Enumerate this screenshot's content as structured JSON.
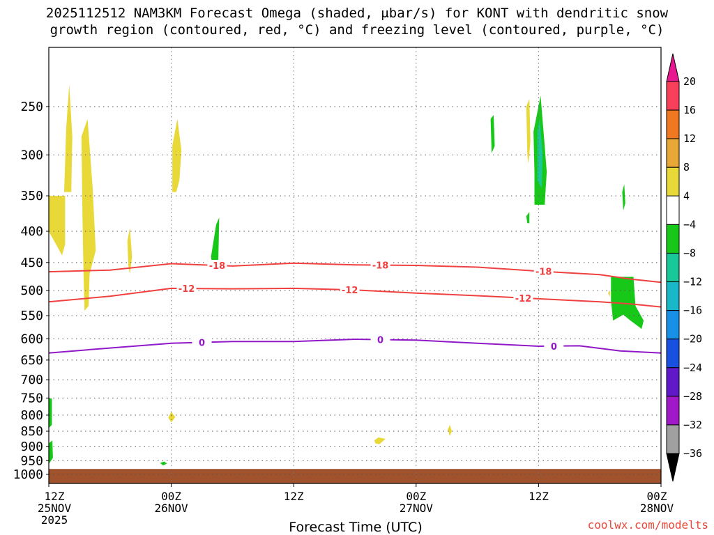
{
  "title_line1": "2025112512 NAM3KM Forecast Omega (shaded, μbar/s) for KONT with dendritic snow",
  "title_line2": "growth region (contoured, red, °C) and freezing level (contoured, purple, °C)",
  "credit": "coolwx.com/modelts",
  "chart_data": {
    "type": "time-height-contour",
    "title": "2025112512 NAM3KM Forecast Omega (shaded, μbar/s) for KONT with dendritic snow growth region (contoured, red, °C) and freezing level (contoured, purple, °C)",
    "xlabel": "Forecast Time (UTC)",
    "ylabel": "",
    "x_ticks": [
      {
        "hour": 0,
        "label1": "12Z",
        "label2": "25NOV",
        "label3": "2025"
      },
      {
        "hour": 12,
        "label1": "00Z",
        "label2": "26NOV",
        "label3": ""
      },
      {
        "hour": 24,
        "label1": "12Z",
        "label2": "",
        "label3": ""
      },
      {
        "hour": 36,
        "label1": "00Z",
        "label2": "27NOV",
        "label3": ""
      },
      {
        "hour": 48,
        "label1": "12Z",
        "label2": "",
        "label3": ""
      },
      {
        "hour": 60,
        "label1": "00Z",
        "label2": "28NOV",
        "label3": ""
      }
    ],
    "xlim_hours": [
      0,
      60
    ],
    "y_ticks": [
      250,
      300,
      350,
      400,
      450,
      500,
      550,
      600,
      650,
      700,
      750,
      800,
      850,
      900,
      950,
      1000
    ],
    "ylim_hpa": [
      200,
      1035
    ],
    "y_scale": "log-pressure",
    "grid": true,
    "colorbar": {
      "labels": [
        "20",
        "16",
        "12",
        "8",
        "4",
        "−4",
        "−8",
        "−12",
        "−16",
        "−20",
        "−24",
        "−28",
        "−32",
        "−36"
      ],
      "colors": [
        "#f8405a",
        "#f07820",
        "#e8a838",
        "#e8d838",
        "#ffffff",
        "#18c818",
        "#18c898",
        "#18b8c8",
        "#1890e8",
        "#1850e0",
        "#6018c8",
        "#a018c8",
        "#a0a0a0"
      ],
      "top_triangle_color": "#e81890",
      "bottom_triangle_color": "#000000"
    },
    "contours": [
      {
        "label": "-18",
        "color": "#f04040",
        "points": [
          [
            0,
            466
          ],
          [
            6,
            463
          ],
          [
            12,
            452
          ],
          [
            18,
            456
          ],
          [
            24,
            451
          ],
          [
            30,
            454
          ],
          [
            36,
            455
          ],
          [
            42,
            458
          ],
          [
            48,
            465
          ],
          [
            54,
            471
          ],
          [
            57,
            479
          ],
          [
            60,
            485
          ]
        ],
        "label_hours": [
          16.5,
          32.5,
          48.5
        ]
      },
      {
        "label": "-12",
        "color": "#f04040",
        "points": [
          [
            0,
            522
          ],
          [
            6,
            511
          ],
          [
            12,
            496
          ],
          [
            18,
            497
          ],
          [
            24,
            496
          ],
          [
            30,
            499
          ],
          [
            36,
            505
          ],
          [
            42,
            510
          ],
          [
            48,
            516
          ],
          [
            54,
            522
          ],
          [
            57,
            526
          ],
          [
            60,
            532
          ]
        ],
        "label_hours": [
          13.5,
          29.5,
          46.5
        ]
      },
      {
        "label": "0",
        "color": "#9018c8",
        "points": [
          [
            0,
            633
          ],
          [
            4,
            625
          ],
          [
            12,
            610
          ],
          [
            18,
            606
          ],
          [
            24,
            606
          ],
          [
            30,
            601
          ],
          [
            36,
            603
          ],
          [
            42,
            610
          ],
          [
            48,
            617
          ],
          [
            52,
            616
          ],
          [
            56,
            628
          ],
          [
            60,
            633
          ]
        ],
        "label_hours": [
          15,
          32.5,
          49.5
        ]
      }
    ],
    "omega_regions": [
      {
        "value": 4,
        "color": "#e8d838",
        "points": [
          [
            0,
            350
          ],
          [
            1.6,
            350
          ],
          [
            1.6,
            420
          ],
          [
            1.3,
            438
          ],
          [
            0,
            400
          ]
        ]
      },
      {
        "value": 4,
        "color": "#e8d838",
        "points": [
          [
            1.5,
            345
          ],
          [
            1.7,
            272
          ],
          [
            2.0,
            230
          ],
          [
            2.3,
            280
          ],
          [
            2.2,
            345
          ]
        ]
      },
      {
        "value": 4,
        "color": "#e8d838",
        "points": [
          [
            3.2,
            280
          ],
          [
            3.8,
            262
          ],
          [
            4.3,
            340
          ],
          [
            4.6,
            430
          ],
          [
            4.0,
            470
          ],
          [
            3.9,
            530
          ],
          [
            3.5,
            540
          ],
          [
            3.4,
            470
          ],
          [
            3.3,
            380
          ]
        ]
      },
      {
        "value": 4,
        "color": "#e8d838",
        "points": [
          [
            7.7,
            415
          ],
          [
            7.95,
            395
          ],
          [
            8.15,
            440
          ],
          [
            7.95,
            470
          ],
          [
            7.8,
            455
          ]
        ]
      },
      {
        "value": 4,
        "color": "#e8d838",
        "points": [
          [
            12.1,
            290
          ],
          [
            12.6,
            262
          ],
          [
            13.0,
            295
          ],
          [
            12.8,
            330
          ],
          [
            12.5,
            345
          ],
          [
            12.1,
            345
          ]
        ]
      },
      {
        "value": -4,
        "color": "#18c818",
        "points": [
          [
            15.9,
            440
          ],
          [
            16.4,
            390
          ],
          [
            16.7,
            380
          ],
          [
            16.6,
            455
          ],
          [
            16.0,
            455
          ]
        ]
      },
      {
        "value": -4,
        "color": "#18c818",
        "points": [
          [
            43.3,
            262
          ],
          [
            43.6,
            258
          ],
          [
            43.7,
            290
          ],
          [
            43.4,
            298
          ]
        ]
      },
      {
        "value": 4,
        "color": "#e8d838",
        "points": [
          [
            46.8,
            250
          ],
          [
            47.1,
            243
          ],
          [
            47.2,
            285
          ],
          [
            47.0,
            310
          ],
          [
            46.9,
            300
          ]
        ]
      },
      {
        "value": -4,
        "color": "#18c818",
        "points": [
          [
            47.5,
            275
          ],
          [
            48.2,
            240
          ],
          [
            48.6,
            290
          ],
          [
            48.8,
            320
          ],
          [
            48.6,
            362
          ],
          [
            47.6,
            362
          ],
          [
            47.6,
            320
          ]
        ]
      },
      {
        "value": -8,
        "color": "#18c898",
        "points": [
          [
            47.9,
            275
          ],
          [
            48.1,
            262
          ],
          [
            48.4,
            300
          ],
          [
            48.3,
            340
          ],
          [
            47.9,
            330
          ]
        ]
      },
      {
        "value": -4,
        "color": "#18c818",
        "points": [
          [
            46.8,
            378
          ],
          [
            47.1,
            372
          ],
          [
            47.1,
            388
          ],
          [
            46.9,
            388
          ]
        ]
      },
      {
        "value": -4,
        "color": "#18c818",
        "points": [
          [
            56.2,
            345
          ],
          [
            56.4,
            335
          ],
          [
            56.5,
            360
          ],
          [
            56.3,
            370
          ]
        ]
      },
      {
        "value": -4,
        "color": "#18c818",
        "points": [
          [
            55.1,
            475
          ],
          [
            57.3,
            475
          ],
          [
            57.5,
            530
          ],
          [
            58.3,
            560
          ],
          [
            58.1,
            578
          ],
          [
            57.0,
            560
          ],
          [
            56.3,
            548
          ],
          [
            55.3,
            560
          ],
          [
            55.1,
            520
          ]
        ]
      },
      {
        "value": 4,
        "color": "#e8d838",
        "points": [
          [
            54.8,
            505
          ],
          [
            55.0,
            500
          ],
          [
            55.0,
            512
          ]
        ]
      },
      {
        "value": -4,
        "color": "#18c818",
        "points": [
          [
            0,
            750
          ],
          [
            0.3,
            752
          ],
          [
            0.3,
            830
          ],
          [
            0,
            840
          ]
        ]
      },
      {
        "value": -4,
        "color": "#18c818",
        "points": [
          [
            0,
            890
          ],
          [
            0.35,
            880
          ],
          [
            0.4,
            940
          ],
          [
            0,
            962
          ]
        ]
      },
      {
        "value": 4,
        "color": "#e8d838",
        "points": [
          [
            11.7,
            808
          ],
          [
            12.0,
            790
          ],
          [
            12.4,
            806
          ],
          [
            12.0,
            822
          ]
        ]
      },
      {
        "value": -4,
        "color": "#18c818",
        "points": [
          [
            10.9,
            958
          ],
          [
            11.3,
            953
          ],
          [
            11.6,
            960
          ],
          [
            11.2,
            967
          ]
        ]
      },
      {
        "value": 4,
        "color": "#e8d838",
        "points": [
          [
            31.9,
            880
          ],
          [
            32.3,
            870
          ],
          [
            33.0,
            875
          ],
          [
            32.4,
            893
          ],
          [
            32.0,
            890
          ]
        ]
      },
      {
        "value": 4,
        "color": "#e8d838",
        "points": [
          [
            39.1,
            845
          ],
          [
            39.3,
            830
          ],
          [
            39.5,
            850
          ],
          [
            39.3,
            865
          ]
        ]
      }
    ],
    "ground": {
      "color": "#a0522d",
      "top_hpa": 980
    }
  }
}
